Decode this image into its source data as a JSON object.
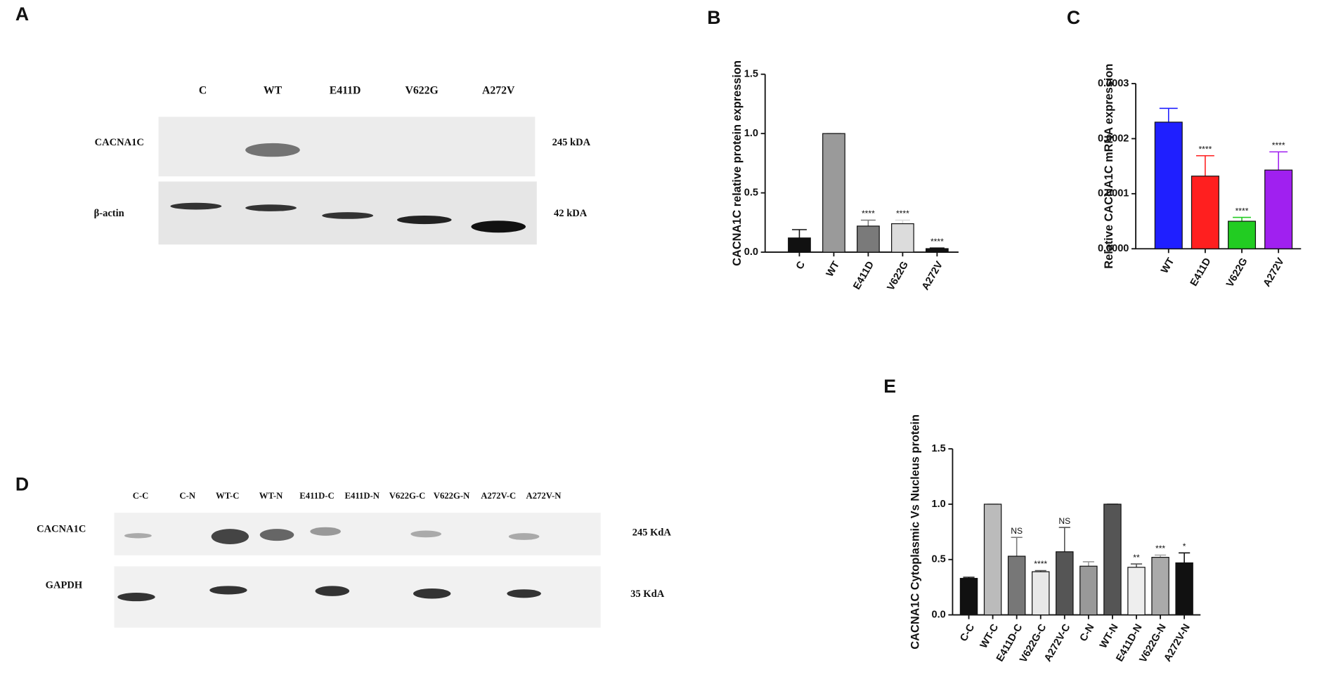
{
  "blots": [
    {
      "panel_label": "A",
      "lanes": [
        "C",
        "WT",
        "E411D",
        "V622G",
        "A272V"
      ],
      "rows": [
        {
          "label": "CACNA1C",
          "size": "245 kDA"
        },
        {
          "label": "β-actin",
          "size": "42 kDA"
        }
      ]
    },
    {
      "panel_label": "D",
      "lanes": [
        "C-C",
        "C-N",
        "WT-C",
        "WT-N",
        "E411D-C",
        "E411D-N",
        "V622G-C",
        "V622G-N",
        "A272V-C",
        "A272V-N"
      ],
      "rows": [
        {
          "label": "CACNA1C",
          "size": "245 KdA"
        },
        {
          "label": "GAPDH",
          "size": "35 KdA"
        }
      ]
    }
  ],
  "chart_data": [
    {
      "type": "bar",
      "panel_label": "B",
      "y_label": "CACNA1C relative protein expression",
      "categories": [
        "C",
        "WT",
        "E411D",
        "V622G",
        "A272V"
      ],
      "values": [
        0.12,
        1.0,
        0.22,
        0.24,
        0.03
      ],
      "errors": [
        0.07,
        0,
        0.05,
        0.03,
        0.005
      ],
      "colors": [
        "#111111",
        "#9a9a9a",
        "#7a7a7a",
        "#dcdcdc",
        "#111111"
      ],
      "annotations": [
        null,
        null,
        "****",
        "****",
        "****"
      ],
      "ylim": [
        0,
        1.5
      ],
      "yticks": [
        {
          "value": 0,
          "label": "0.0"
        },
        0.5,
        {
          "value": 1,
          "label": "1.0"
        },
        1.5
      ]
    },
    {
      "type": "bar",
      "panel_label": "C",
      "y_label": "Relative CACNA1C mRNA expression",
      "categories": [
        "WT",
        "E411D",
        "V622G",
        "A272V"
      ],
      "values": [
        0.00023,
        0.000132,
        5e-05,
        0.000143
      ],
      "errors": [
        2.5e-05,
        3.7e-05,
        7e-06,
        3.3e-05
      ],
      "colors": [
        "#1f1fff",
        "#ff1f1f",
        "#22cc22",
        "#a020f0"
      ],
      "annotations": [
        null,
        "****",
        "****",
        "****"
      ],
      "ylim": [
        0,
        0.0003
      ],
      "yticks": [
        {
          "value": 0,
          "label": "0.0000"
        },
        0.0001,
        0.0002,
        0.0003
      ]
    },
    {
      "type": "bar",
      "panel_label": "E",
      "y_label": "CACNA1C Cytoplasmic Vs Nucleus protein",
      "categories": [
        "C-C",
        "WT-C",
        "E411D-C",
        "V622G-C",
        "A272V-C",
        "C-N",
        "WT-N",
        "E411D-N",
        "V622G-N",
        "A272V-N"
      ],
      "values": [
        0.33,
        1.0,
        0.53,
        0.39,
        0.57,
        0.44,
        1.0,
        0.43,
        0.52,
        0.47
      ],
      "errors": [
        0.01,
        0,
        0.17,
        0.01,
        0.22,
        0.04,
        0,
        0.03,
        0.02,
        0.09
      ],
      "colors": [
        "#111111",
        "#bbbbbb",
        "#777777",
        "#e8e8e8",
        "#555555",
        "#999999",
        "#555555",
        "#eeeeee",
        "#aaaaaa",
        "#111111"
      ],
      "annotations": [
        null,
        null,
        "NS",
        "****",
        "NS",
        null,
        null,
        "**",
        "***",
        "*"
      ],
      "ylim": [
        0,
        1.5
      ],
      "yticks": [
        {
          "value": 0,
          "label": "0.0"
        },
        0.5,
        {
          "value": 1,
          "label": "1.0"
        },
        1.5
      ]
    }
  ]
}
